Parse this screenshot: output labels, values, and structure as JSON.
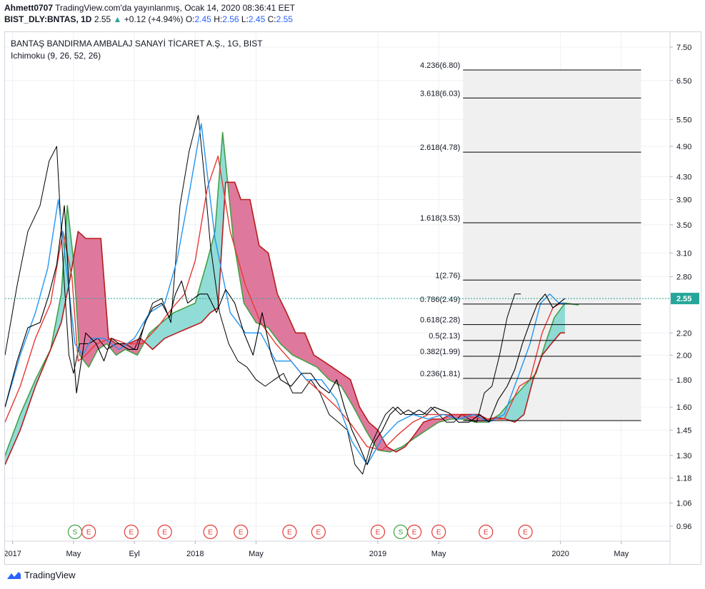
{
  "header": {
    "author": "Ahmett0707",
    "published": "TradingView.com'da yayınlanmış, Ocak 14, 2020 08:36:41 EET",
    "symbol": "BIST_DLY:BNTAS, 1D",
    "last": "2.55",
    "change_arrow": "▲",
    "change": "+0.12 (+4.94%)",
    "o_label": "O:",
    "o_value": "2.45",
    "h_label": "H:",
    "h_value": "2.56",
    "l_label": "L:",
    "l_value": "2.45",
    "c_label": "C:",
    "c_value": "2.55"
  },
  "legend": {
    "title": "BANTAŞ BANDIRMA AMBALAJ SANAYİ TİCARET A.Ş., 1G, BIST",
    "indicator": "Ichimoku (9, 26, 52, 26)"
  },
  "brand": {
    "logo_icon": "tradingview-cloud-icon",
    "name": "TradingView"
  },
  "colors": {
    "grid": "#eef0f3",
    "price": "#000000",
    "tenkan": "#2196f3",
    "kijun": "#e53935",
    "chikou": "#000000",
    "span_a": "#43a047",
    "span_b": "#b71c1c",
    "cloud_bull": "#7fd6d0",
    "cloud_bear": "#d9608c",
    "last_price_bg": "#26a69a",
    "fib_line": "#000000",
    "fib_box": "#f0f0f0",
    "earnings": "#e53935",
    "split": "#43a047"
  },
  "chart_data": {
    "type": "line",
    "title": "BANTAŞ BANDIRMA AMBALAJ SANAYİ TİCARET A.Ş., 1G, BIST",
    "scale": "log",
    "ylim": [
      0.9,
      8.0
    ],
    "y_ticks": [
      "7.50",
      "6.50",
      "5.50",
      "4.90",
      "4.30",
      "3.90",
      "3.50",
      "3.10",
      "2.80",
      "2.55",
      "2.20",
      "2.00",
      "1.80",
      "1.60",
      "1.45",
      "1.30",
      "1.18",
      "1.06",
      "0.96"
    ],
    "y_tick_values": [
      7.5,
      6.5,
      5.5,
      4.9,
      4.3,
      3.9,
      3.5,
      3.1,
      2.8,
      2.55,
      2.2,
      2.0,
      1.8,
      1.6,
      1.45,
      1.3,
      1.18,
      1.06,
      0.96
    ],
    "x_ticks": [
      "2017",
      "May",
      "Eyl",
      "2018",
      "May",
      "2019",
      "May",
      "2020",
      "May"
    ],
    "x_tick_months": [
      0,
      4,
      8,
      12,
      16,
      24,
      28,
      36,
      40
    ],
    "last_price": 2.55,
    "series": [
      {
        "key": "price",
        "x": [
          -0.5,
          0.3,
          1.0,
          1.8,
          2.4,
          2.9,
          3.4,
          3.8,
          4.2,
          4.8,
          5.5,
          6.0,
          6.5,
          7.0,
          7.6,
          8.2,
          8.7,
          9.2,
          9.8,
          10.3,
          10.7,
          11.1,
          11.5,
          11.9,
          12.3,
          12.8,
          13.4,
          14.0,
          14.6,
          15.2,
          15.8,
          16.4,
          17.0,
          17.6,
          18.3,
          19.0,
          19.6,
          20.2,
          20.8,
          21.3,
          21.8,
          22.3,
          22.8,
          23.3,
          23.8,
          24.3,
          24.8,
          25.3,
          25.8,
          26.2,
          26.7,
          27.2,
          27.7,
          28.2,
          28.7,
          29.3,
          30.0,
          30.7,
          31.3,
          31.9,
          32.5,
          33.0,
          33.5,
          34.0,
          34.5,
          35.0,
          35.5,
          35.9,
          36.3
        ],
        "values": [
          1.6,
          1.95,
          2.25,
          2.3,
          2.6,
          2.95,
          3.8,
          2.4,
          1.7,
          2.2,
          2.1,
          1.95,
          2.15,
          2.1,
          2.05,
          2.05,
          2.3,
          2.45,
          2.5,
          2.35,
          2.6,
          2.75,
          2.5,
          2.55,
          2.6,
          2.6,
          2.4,
          2.65,
          2.5,
          2.2,
          2.0,
          2.4,
          2.0,
          1.8,
          1.75,
          1.85,
          1.85,
          1.75,
          1.7,
          1.8,
          1.6,
          1.45,
          1.35,
          1.25,
          1.38,
          1.45,
          1.55,
          1.6,
          1.55,
          1.55,
          1.58,
          1.55,
          1.6,
          1.58,
          1.56,
          1.5,
          1.5,
          1.55,
          1.5,
          1.65,
          1.75,
          1.88,
          2.1,
          2.3,
          2.5,
          2.6,
          2.45,
          2.5,
          2.55
        ]
      },
      {
        "key": "tenkan",
        "x": [
          -0.5,
          0.5,
          1.5,
          2.3,
          3.0,
          3.6,
          4.1,
          4.6,
          5.2,
          6.0,
          7.0,
          8.0,
          9.0,
          10.0,
          10.8,
          11.6,
          12.4,
          13.3,
          14.3,
          15.3,
          16.3,
          17.3,
          18.3,
          19.3,
          20.3,
          21.3,
          22.3,
          23.3,
          24.3,
          25.3,
          26.3,
          27.3,
          28.3,
          29.3,
          30.3,
          31.3,
          32.3,
          33.3,
          34.0,
          34.7,
          35.3,
          35.9,
          36.3
        ],
        "values": [
          1.6,
          2.0,
          2.4,
          2.9,
          3.9,
          2.8,
          2.1,
          2.0,
          2.15,
          2.15,
          2.05,
          2.15,
          2.4,
          2.5,
          3.0,
          4.0,
          5.4,
          3.3,
          2.4,
          2.2,
          2.2,
          1.95,
          1.95,
          1.8,
          1.8,
          1.65,
          1.38,
          1.25,
          1.4,
          1.5,
          1.55,
          1.52,
          1.55,
          1.52,
          1.55,
          1.5,
          1.55,
          1.85,
          2.1,
          2.5,
          2.6,
          2.5,
          2.5
        ]
      },
      {
        "key": "kijun",
        "x": [
          -0.5,
          0.5,
          1.5,
          2.5,
          3.3,
          3.9,
          4.3,
          4.8,
          5.5,
          6.5,
          7.5,
          8.5,
          9.5,
          10.5,
          11.3,
          12.0,
          12.8,
          13.5,
          14.3,
          15.3,
          16.3,
          17.3,
          18.3,
          19.3,
          20.3,
          21.3,
          22.3,
          23.3,
          24.3,
          25.3,
          26.3,
          27.3,
          28.3,
          29.3,
          30.3,
          31.3,
          32.3,
          33.3,
          34.0,
          34.8,
          35.5,
          36.0,
          36.3
        ],
        "values": [
          1.5,
          1.75,
          2.15,
          2.5,
          3.4,
          2.8,
          1.95,
          2.0,
          2.1,
          2.15,
          2.1,
          2.1,
          2.25,
          2.45,
          2.6,
          3.0,
          4.1,
          4.7,
          3.4,
          2.7,
          2.3,
          2.1,
          1.95,
          1.8,
          1.7,
          1.6,
          1.48,
          1.35,
          1.33,
          1.42,
          1.5,
          1.55,
          1.55,
          1.55,
          1.53,
          1.52,
          1.52,
          1.75,
          1.8,
          2.2,
          2.45,
          2.5,
          2.5
        ]
      },
      {
        "key": "chikou",
        "x": [
          -0.5,
          0.3,
          1.0,
          1.8,
          2.4,
          2.9,
          3.3,
          3.7,
          4.0,
          4.4,
          5.0,
          5.6,
          6.2,
          6.8,
          7.4,
          8.0,
          8.6,
          9.2,
          9.8,
          10.4,
          11.0,
          11.6,
          12.2,
          12.6,
          13.0,
          13.6,
          14.2,
          14.8,
          15.4,
          16.0,
          16.6,
          17.2,
          17.8,
          18.4,
          19.0,
          19.6,
          20.2,
          20.8,
          21.4,
          22.0,
          22.5,
          23.0,
          23.5,
          24.0,
          24.5,
          25.0,
          25.5,
          26.0,
          26.5,
          27.0,
          27.5,
          28.0,
          28.5,
          29.0,
          29.5,
          30.0,
          30.5,
          31.0,
          31.5,
          32.0,
          32.5,
          33.0,
          33.4
        ],
        "values": [
          2.0,
          2.7,
          3.4,
          3.8,
          4.6,
          4.9,
          3.0,
          2.0,
          1.85,
          2.1,
          2.1,
          2.15,
          2.05,
          2.1,
          2.1,
          2.05,
          2.25,
          2.5,
          2.55,
          2.3,
          3.8,
          4.8,
          5.6,
          4.3,
          3.2,
          2.4,
          2.1,
          1.95,
          1.9,
          1.8,
          1.75,
          1.8,
          1.85,
          1.7,
          1.7,
          1.8,
          1.7,
          1.55,
          1.5,
          1.45,
          1.25,
          1.2,
          1.35,
          1.45,
          1.55,
          1.6,
          1.55,
          1.58,
          1.55,
          1.55,
          1.6,
          1.55,
          1.5,
          1.5,
          1.55,
          1.52,
          1.5,
          1.7,
          1.75,
          2.0,
          2.35,
          2.6,
          2.6
        ]
      },
      {
        "key": "span_a",
        "x": [
          -0.5,
          0.5,
          1.5,
          2.5,
          3.2,
          3.6,
          4.0,
          4.4,
          5.0,
          5.6,
          6.2,
          6.8,
          7.4,
          8.2,
          9.0,
          9.8,
          10.6,
          11.3,
          12.0,
          12.8,
          13.3,
          13.8,
          14.5,
          15.2,
          16.0,
          16.8,
          17.6,
          18.4,
          19.2,
          20.0,
          20.8,
          21.6,
          22.4,
          23.2,
          24.0,
          24.8,
          25.6,
          26.4,
          27.2,
          28.0,
          28.8,
          29.6,
          30.4,
          31.2,
          32.0,
          32.8,
          33.6,
          34.4,
          35.0,
          35.6,
          36.3,
          37.2
        ],
        "values": [
          1.3,
          1.55,
          1.8,
          2.05,
          2.6,
          3.8,
          3.0,
          2.0,
          1.9,
          2.05,
          2.1,
          2.0,
          2.05,
          2.0,
          2.2,
          2.3,
          2.4,
          2.45,
          2.5,
          3.0,
          3.4,
          5.2,
          3.3,
          2.5,
          2.3,
          2.25,
          2.1,
          2.0,
          1.95,
          1.9,
          1.8,
          1.75,
          1.6,
          1.45,
          1.33,
          1.32,
          1.35,
          1.4,
          1.45,
          1.5,
          1.52,
          1.52,
          1.5,
          1.5,
          1.55,
          1.65,
          1.75,
          1.85,
          2.1,
          2.35,
          2.5,
          2.48
        ]
      },
      {
        "key": "span_b",
        "x": [
          -0.5,
          0.5,
          1.5,
          2.5,
          3.2,
          3.8,
          4.3,
          4.8,
          5.3,
          5.8,
          6.3,
          6.8,
          7.6,
          8.4,
          9.2,
          10.0,
          10.8,
          11.6,
          12.4,
          13.0,
          13.5,
          14.0,
          14.6,
          15.0,
          15.6,
          16.2,
          16.8,
          17.4,
          18.0,
          18.6,
          19.2,
          19.8,
          20.4,
          21.0,
          21.6,
          22.2,
          22.8,
          23.4,
          24.0,
          24.6,
          25.2,
          25.8,
          26.4,
          27.0,
          27.6,
          28.2,
          28.8,
          29.4,
          30.0,
          30.6,
          31.2,
          31.8,
          32.4,
          33.0,
          33.6,
          34.2,
          34.8,
          35.4,
          36.0,
          36.3
        ],
        "values": [
          1.25,
          1.45,
          1.75,
          2.05,
          2.3,
          2.8,
          3.4,
          3.3,
          3.3,
          3.3,
          2.15,
          2.1,
          2.1,
          2.15,
          2.05,
          2.15,
          2.2,
          2.25,
          2.3,
          2.4,
          2.45,
          4.2,
          4.2,
          3.9,
          3.9,
          3.2,
          3.1,
          2.6,
          2.4,
          2.2,
          2.2,
          2.0,
          1.95,
          1.9,
          1.85,
          1.8,
          1.6,
          1.5,
          1.45,
          1.35,
          1.32,
          1.35,
          1.42,
          1.5,
          1.52,
          1.52,
          1.55,
          1.55,
          1.55,
          1.55,
          1.52,
          1.53,
          1.52,
          1.5,
          1.55,
          1.8,
          2.0,
          2.1,
          2.2,
          2.2
        ]
      }
    ],
    "fibonacci": {
      "x_start": 29.6,
      "x_end": 41.3,
      "box_top": 6.8,
      "box_bottom": 1.51,
      "levels": [
        {
          "label": "4.236(6.80)",
          "value": 6.8
        },
        {
          "label": "3.618(6.03)",
          "value": 6.03
        },
        {
          "label": "2.618(4.78)",
          "value": 4.78
        },
        {
          "label": "1.618(3.53)",
          "value": 3.53
        },
        {
          "label": "1(2.76)",
          "value": 2.76
        },
        {
          "label": "0.786(2.49)",
          "value": 2.49
        },
        {
          "label": "0.618(2.28)",
          "value": 2.28
        },
        {
          "label": "0.5(2.13)",
          "value": 2.13
        },
        {
          "label": "0.382(1.99)",
          "value": 1.99
        },
        {
          "label": "0.236(1.81)",
          "value": 1.81
        },
        {
          "label": "",
          "value": 1.51
        }
      ]
    },
    "events": [
      {
        "type": "S",
        "month": 4.1
      },
      {
        "type": "E",
        "month": 5.0
      },
      {
        "type": "E",
        "month": 7.8
      },
      {
        "type": "E",
        "month": 10.0
      },
      {
        "type": "E",
        "month": 13.0
      },
      {
        "type": "E",
        "month": 15.0
      },
      {
        "type": "E",
        "month": 18.2
      },
      {
        "type": "E",
        "month": 20.1
      },
      {
        "type": "E",
        "month": 24.0
      },
      {
        "type": "S",
        "month": 25.5
      },
      {
        "type": "E",
        "month": 26.4
      },
      {
        "type": "E",
        "month": 28.0
      },
      {
        "type": "E",
        "month": 31.1
      },
      {
        "type": "E",
        "month": 33.7
      }
    ]
  }
}
